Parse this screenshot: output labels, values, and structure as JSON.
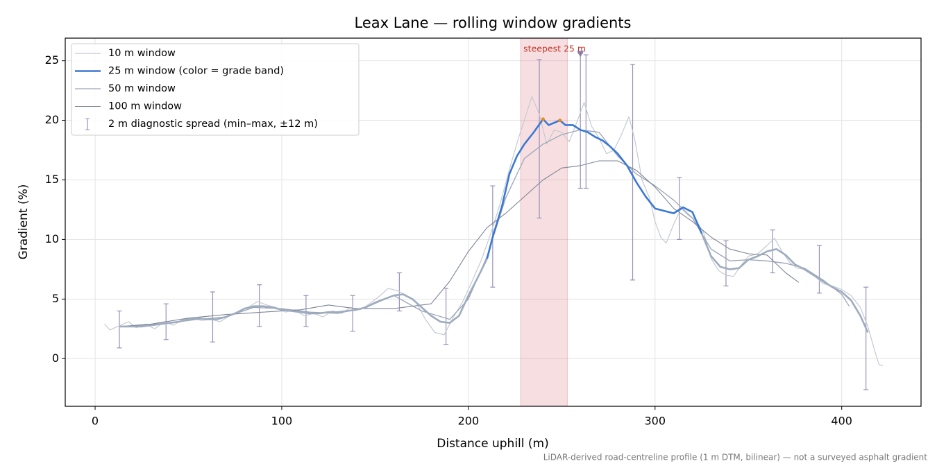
{
  "chart_data": {
    "type": "line",
    "title": "Leax Lane — rolling window gradients",
    "xlabel": "Distance uphill (m)",
    "ylabel": "Gradient (%)",
    "footnote": "LiDAR-derived road-centreline profile (1 m DTM, bilinear) — not a surveyed asphalt gradient",
    "xlim": [
      -16,
      442.5
    ],
    "ylim": [
      -4,
      26.9
    ],
    "xticks": [
      0,
      100,
      200,
      300,
      400
    ],
    "yticks": [
      0,
      5,
      10,
      15,
      20,
      25
    ],
    "grid": true,
    "legend": "upper left",
    "series": [
      {
        "name": "10 m window",
        "color": "#c4c9d2",
        "width": 1.2,
        "x": [
          5,
          8,
          12,
          18,
          22,
          27,
          32,
          37,
          42,
          47,
          52,
          57,
          62,
          67,
          72,
          77,
          82,
          87,
          92,
          97,
          102,
          107,
          112,
          117,
          122,
          127,
          132,
          137,
          142,
          147,
          152,
          157,
          162,
          167,
          172,
          177,
          182,
          187,
          192,
          197,
          202,
          207,
          212,
          217,
          222,
          227,
          231,
          234,
          238,
          242,
          246,
          250,
          254,
          258,
          262,
          266,
          270,
          274,
          278,
          282,
          286,
          289,
          293,
          297,
          300,
          303,
          306,
          310,
          314,
          318,
          322,
          326,
          330,
          334,
          338,
          342,
          346,
          350,
          355,
          360,
          364,
          368,
          372,
          376,
          380,
          385,
          390,
          395,
          400,
          405,
          410,
          414,
          418,
          420,
          422
        ],
        "values": [
          2.9,
          2.4,
          2.7,
          3.1,
          2.6,
          2.9,
          2.5,
          3.1,
          2.8,
          3.3,
          3.4,
          3.2,
          3.3,
          3.1,
          3.6,
          3.9,
          4.3,
          4.8,
          4.5,
          4.3,
          3.9,
          4.1,
          3.6,
          3.8,
          3.5,
          4.0,
          3.8,
          4.3,
          4.1,
          4.6,
          5.2,
          5.9,
          5.7,
          5.3,
          4.7,
          3.3,
          2.2,
          2.0,
          3.5,
          4.8,
          6.5,
          8.3,
          10.5,
          13.0,
          15.9,
          18.6,
          20.5,
          22.0,
          20.5,
          18.0,
          19.2,
          19.0,
          18.2,
          19.8,
          21.5,
          19.5,
          18.5,
          17.2,
          17.5,
          18.8,
          20.3,
          18.5,
          15.0,
          13.5,
          11.5,
          10.2,
          9.7,
          11.3,
          12.6,
          12.0,
          11.6,
          10.6,
          8.4,
          7.4,
          7.0,
          6.9,
          7.8,
          8.6,
          8.8,
          9.5,
          10.1,
          9.0,
          8.1,
          7.6,
          7.5,
          7.0,
          6.3,
          6.1,
          5.8,
          5.3,
          4.3,
          2.7,
          0.5,
          -0.5,
          -0.6
        ]
      },
      {
        "name": "25 m window (color = grade band)",
        "color": "#3a78d4",
        "width": 2.6,
        "band_min": 10,
        "below_band_color": "#9eacbf",
        "x": [
          13,
          20,
          25,
          30,
          35,
          40,
          45,
          50,
          55,
          60,
          65,
          70,
          75,
          80,
          85,
          90,
          95,
          100,
          105,
          110,
          115,
          120,
          125,
          130,
          135,
          140,
          145,
          150,
          155,
          160,
          165,
          170,
          175,
          180,
          185,
          190,
          195,
          200,
          205,
          210,
          213,
          218,
          222,
          226,
          230,
          235,
          240,
          243,
          246,
          249,
          252,
          256,
          260,
          264,
          268,
          272,
          276,
          280,
          285,
          290,
          295,
          300,
          305,
          310,
          315,
          320,
          325,
          330,
          335,
          340,
          345,
          350,
          355,
          360,
          365,
          370,
          375,
          380,
          385,
          390,
          395,
          400,
          405,
          410,
          414
        ],
        "values": [
          2.7,
          2.7,
          2.7,
          2.8,
          2.9,
          3.0,
          3.1,
          3.3,
          3.4,
          3.3,
          3.3,
          3.5,
          3.8,
          4.2,
          4.4,
          4.4,
          4.3,
          4.1,
          4.0,
          3.9,
          3.8,
          3.8,
          3.9,
          3.9,
          4.0,
          4.1,
          4.3,
          4.7,
          5.0,
          5.3,
          5.4,
          5.0,
          4.3,
          3.6,
          3.1,
          3.0,
          3.6,
          5.3,
          6.8,
          8.4,
          10.2,
          12.8,
          15.5,
          17.0,
          18.0,
          19.0,
          20.1,
          19.6,
          19.8,
          20.0,
          19.6,
          19.6,
          19.2,
          19.0,
          18.6,
          18.3,
          17.8,
          17.2,
          16.2,
          14.8,
          13.6,
          12.6,
          12.4,
          12.2,
          12.7,
          12.3,
          10.5,
          8.6,
          7.7,
          7.5,
          7.6,
          8.3,
          8.6,
          9.0,
          9.2,
          8.7,
          7.9,
          7.5,
          7.0,
          6.5,
          6.0,
          5.6,
          4.9,
          3.6,
          2.2
        ]
      },
      {
        "name": "50 m window",
        "color": "#9aa5b8",
        "width": 1.3,
        "x": [
          13,
          25,
          40,
          55,
          70,
          85,
          100,
          115,
          130,
          145,
          160,
          175,
          190,
          200,
          210,
          220,
          230,
          240,
          250,
          260,
          270,
          280,
          290,
          300,
          310,
          320,
          330,
          340,
          350,
          360,
          370,
          380,
          390,
          400,
          404
        ],
        "values": [
          2.7,
          2.8,
          3.0,
          3.3,
          3.5,
          4.3,
          4.2,
          3.9,
          3.8,
          4.3,
          5.3,
          4.0,
          3.3,
          5.0,
          8.6,
          13.5,
          16.8,
          18.0,
          18.8,
          19.2,
          19.0,
          17.0,
          15.5,
          14.5,
          13.3,
          11.8,
          9.2,
          8.2,
          8.3,
          8.2,
          8.0,
          7.6,
          6.6,
          5.4,
          4.4
        ]
      },
      {
        "name": "100 m window",
        "color": "#7d8496",
        "width": 1.1,
        "x": [
          13,
          30,
          50,
          70,
          90,
          110,
          125,
          140,
          160,
          180,
          190,
          200,
          210,
          220,
          230,
          240,
          250,
          260,
          270,
          280,
          290,
          300,
          310,
          320,
          330,
          340,
          350,
          360,
          370,
          377
        ],
        "values": [
          2.7,
          2.9,
          3.4,
          3.7,
          3.9,
          4.1,
          4.5,
          4.2,
          4.2,
          4.6,
          6.5,
          9.0,
          11.0,
          12.2,
          13.6,
          15.0,
          16.0,
          16.2,
          16.6,
          16.6,
          15.8,
          14.4,
          12.6,
          11.5,
          10.2,
          9.2,
          8.8,
          8.7,
          7.2,
          6.4
        ]
      }
    ],
    "spread": {
      "name": "2 m diagnostic spread (min–max, ±12 m)",
      "color": "#9990b8",
      "x": [
        13,
        38,
        63,
        88,
        113,
        138,
        163,
        188,
        213,
        238,
        260,
        263,
        288,
        313,
        338,
        363,
        388,
        413
      ],
      "low": [
        0.9,
        1.6,
        1.4,
        2.7,
        2.7,
        2.3,
        4.0,
        1.2,
        6.0,
        11.8,
        14.3,
        14.3,
        6.6,
        10.0,
        6.1,
        7.2,
        5.5,
        -2.6
      ],
      "high": [
        4.0,
        4.6,
        5.6,
        6.2,
        5.3,
        5.3,
        7.2,
        5.9,
        14.5,
        25.1,
        25.6,
        25.5,
        24.7,
        15.2,
        9.9,
        10.8,
        9.5,
        6.0
      ]
    },
    "peaks": {
      "color": "#e8891c",
      "x": [
        240,
        249
      ],
      "values": [
        20.1,
        20.0
      ]
    },
    "steepest": {
      "label": "steepest 25 m",
      "span": [
        228,
        253
      ],
      "color": "#d9606a",
      "label_color": "#c0392b",
      "marker_x": 260,
      "marker_y": 25.6,
      "marker_color": "#8a7ca8"
    }
  }
}
